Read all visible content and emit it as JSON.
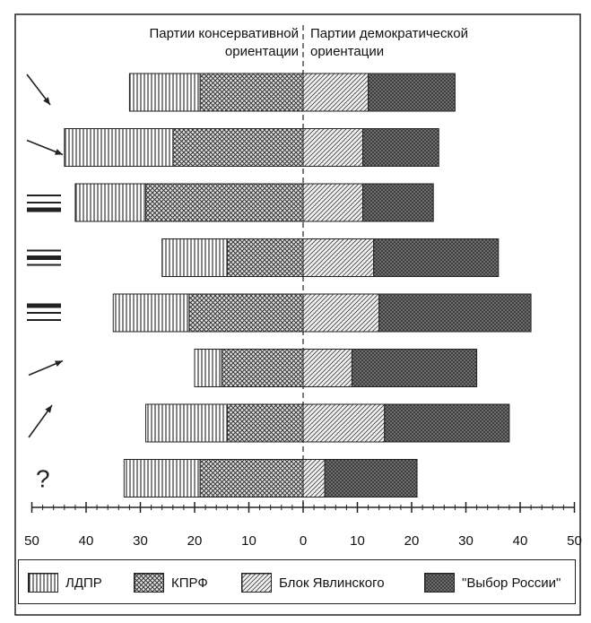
{
  "headers": {
    "left_line1": "Партии консервативной",
    "left_line2": "ориентации",
    "right_line1": "Партии демократической",
    "right_line2": "ориентации"
  },
  "chart_data": {
    "type": "bar",
    "orientation": "horizontal-diverging",
    "rows": [
      {
        "icon": "arrow-down-right-steep",
        "ldpr": 13,
        "kprf": 19,
        "yabloko": 12,
        "vybor": 16
      },
      {
        "icon": "arrow-down-right-shallow",
        "ldpr": 20,
        "kprf": 24,
        "yabloko": 11,
        "vybor": 14
      },
      {
        "icon": "lines-bottom-bold",
        "ldpr": 13,
        "kprf": 29,
        "yabloko": 11,
        "vybor": 13
      },
      {
        "icon": "lines-middle-bold",
        "ldpr": 12,
        "kprf": 14,
        "yabloko": 13,
        "vybor": 23
      },
      {
        "icon": "lines-top-bold",
        "ldpr": 14,
        "kprf": 21,
        "yabloko": 14,
        "vybor": 28
      },
      {
        "icon": "arrow-up-right-shallow",
        "ldpr": 5,
        "kprf": 15,
        "yabloko": 9,
        "vybor": 23
      },
      {
        "icon": "arrow-up-right-steep",
        "ldpr": 15,
        "kprf": 14,
        "yabloko": 15,
        "vybor": 23
      },
      {
        "icon": "question-mark",
        "ldpr": 14,
        "kprf": 19,
        "yabloko": 4,
        "vybor": 17
      }
    ],
    "row_marker_text": "?",
    "x_ticks": [
      "50",
      "40",
      "30",
      "20",
      "10",
      "0",
      "10",
      "20",
      "30",
      "40",
      "50"
    ],
    "xlim": [
      -50,
      50
    ],
    "legend": [
      {
        "key": "ldpr",
        "label": "ЛДПР",
        "pattern": "vertical-lines"
      },
      {
        "key": "kprf",
        "label": "КПРФ",
        "pattern": "crosshatch"
      },
      {
        "key": "yabloko",
        "label": "Блок Явлинского",
        "pattern": "diagonal-lines"
      },
      {
        "key": "vybor",
        "label": "\"Выбор России\"",
        "pattern": "dark-diagonal"
      }
    ]
  }
}
